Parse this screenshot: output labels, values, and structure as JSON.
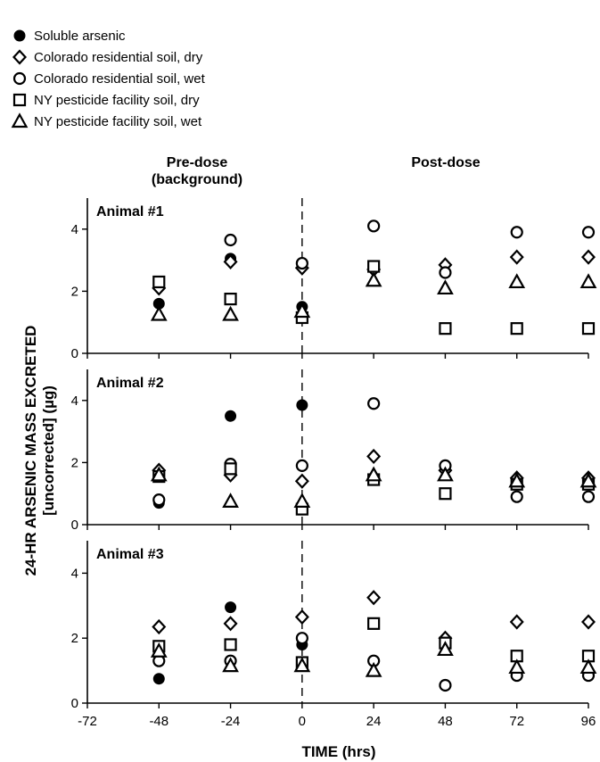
{
  "legend": [
    {
      "marker": "filled-circle",
      "label": "Soluble arsenic"
    },
    {
      "marker": "diamond",
      "label": "Colorado residential soil, dry"
    },
    {
      "marker": "circle",
      "label": "Colorado residential soil, wet"
    },
    {
      "marker": "square",
      "label": "NY pesticide facility soil, dry"
    },
    {
      "marker": "triangle",
      "label": "NY pesticide facility soil, wet"
    }
  ],
  "section_labels": {
    "pre_line1": "Pre-dose",
    "pre_line2": "(background)",
    "post": "Post-dose"
  },
  "chart_data": {
    "type": "scatter",
    "xlabel": "TIME (hrs)",
    "ylabel_line1": "24-HR ARSENIC MASS EXCRETED",
    "ylabel_line2": "[uncorrected] (µg)",
    "xlim": [
      -72,
      96
    ],
    "ylim": [
      0,
      5
    ],
    "x_ticks": [
      -72,
      -48,
      -24,
      0,
      24,
      48,
      72,
      96
    ],
    "y_ticks": [
      0,
      2,
      4
    ],
    "dose_time": 0,
    "panels": [
      {
        "title": "Animal #1",
        "series": [
          {
            "name": "Soluble arsenic",
            "marker": "filled-circle",
            "points": [
              [
                -48,
                1.6
              ],
              [
                -24,
                3.05
              ],
              [
                0,
                1.5
              ]
            ]
          },
          {
            "name": "Colorado residential soil, dry",
            "marker": "diamond",
            "points": [
              [
                -48,
                2.1
              ],
              [
                -24,
                2.95
              ],
              [
                0,
                2.75
              ],
              [
                24,
                2.7
              ],
              [
                48,
                2.85
              ],
              [
                72,
                3.1
              ],
              [
                96,
                3.1
              ]
            ]
          },
          {
            "name": "Colorado residential soil, wet",
            "marker": "circle",
            "points": [
              [
                -24,
                3.65
              ],
              [
                0,
                2.9
              ],
              [
                24,
                4.1
              ],
              [
                48,
                2.6
              ],
              [
                72,
                3.9
              ],
              [
                96,
                3.9
              ]
            ]
          },
          {
            "name": "NY pesticide facility soil, dry",
            "marker": "square",
            "points": [
              [
                -48,
                2.3
              ],
              [
                -24,
                1.75
              ],
              [
                0,
                1.15
              ],
              [
                24,
                2.8
              ],
              [
                48,
                0.8
              ],
              [
                72,
                0.8
              ],
              [
                96,
                0.8
              ]
            ]
          },
          {
            "name": "NY pesticide facility soil, wet",
            "marker": "triangle",
            "points": [
              [
                -48,
                1.25
              ],
              [
                -24,
                1.25
              ],
              [
                0,
                1.35
              ],
              [
                24,
                2.35
              ],
              [
                48,
                2.1
              ],
              [
                72,
                2.3
              ],
              [
                96,
                2.3
              ]
            ]
          }
        ]
      },
      {
        "title": "Animal #2",
        "series": [
          {
            "name": "Soluble arsenic",
            "marker": "filled-circle",
            "points": [
              [
                -48,
                0.7
              ],
              [
                -24,
                3.5
              ],
              [
                0,
                3.85
              ]
            ]
          },
          {
            "name": "Colorado residential soil, dry",
            "marker": "diamond",
            "points": [
              [
                -48,
                1.75
              ],
              [
                -24,
                1.6
              ],
              [
                0,
                1.4
              ],
              [
                24,
                2.2
              ],
              [
                48,
                1.75
              ],
              [
                72,
                1.5
              ],
              [
                96,
                1.5
              ]
            ]
          },
          {
            "name": "Colorado residential soil, wet",
            "marker": "circle",
            "points": [
              [
                -48,
                0.8
              ],
              [
                -24,
                1.95
              ],
              [
                0,
                1.9
              ],
              [
                24,
                3.9
              ],
              [
                48,
                1.9
              ],
              [
                72,
                0.9
              ],
              [
                96,
                0.9
              ]
            ]
          },
          {
            "name": "NY pesticide facility soil, dry",
            "marker": "square",
            "points": [
              [
                -48,
                1.55
              ],
              [
                -24,
                1.8
              ],
              [
                0,
                0.5
              ],
              [
                24,
                1.45
              ],
              [
                48,
                1.0
              ],
              [
                72,
                1.3
              ],
              [
                96,
                1.3
              ]
            ]
          },
          {
            "name": "NY pesticide facility soil, wet",
            "marker": "triangle",
            "points": [
              [
                -48,
                1.6
              ],
              [
                -24,
                0.75
              ],
              [
                0,
                0.75
              ],
              [
                24,
                1.6
              ],
              [
                48,
                1.6
              ],
              [
                72,
                1.4
              ],
              [
                96,
                1.4
              ]
            ]
          }
        ]
      },
      {
        "title": "Animal #3",
        "series": [
          {
            "name": "Soluble arsenic",
            "marker": "filled-circle",
            "points": [
              [
                -48,
                0.75
              ],
              [
                -24,
                2.95
              ],
              [
                0,
                1.8
              ]
            ]
          },
          {
            "name": "Colorado residential soil, dry",
            "marker": "diamond",
            "points": [
              [
                -48,
                2.35
              ],
              [
                -24,
                2.45
              ],
              [
                0,
                2.65
              ],
              [
                24,
                3.25
              ],
              [
                48,
                2.0
              ],
              [
                72,
                2.5
              ],
              [
                96,
                2.5
              ]
            ]
          },
          {
            "name": "Colorado residential soil, wet",
            "marker": "circle",
            "points": [
              [
                -48,
                1.3
              ],
              [
                -24,
                1.3
              ],
              [
                0,
                2.0
              ],
              [
                24,
                1.3
              ],
              [
                48,
                0.55
              ],
              [
                72,
                0.85
              ],
              [
                96,
                0.85
              ]
            ]
          },
          {
            "name": "NY pesticide facility soil, dry",
            "marker": "square",
            "points": [
              [
                -48,
                1.75
              ],
              [
                -24,
                1.8
              ],
              [
                0,
                1.25
              ],
              [
                24,
                2.45
              ],
              [
                48,
                1.85
              ],
              [
                72,
                1.45
              ],
              [
                96,
                1.45
              ]
            ]
          },
          {
            "name": "NY pesticide facility soil, wet",
            "marker": "triangle",
            "points": [
              [
                -48,
                1.6
              ],
              [
                -24,
                1.15
              ],
              [
                0,
                1.15
              ],
              [
                24,
                1.0
              ],
              [
                48,
                1.65
              ],
              [
                72,
                1.1
              ],
              [
                96,
                1.1
              ]
            ]
          }
        ]
      }
    ]
  }
}
